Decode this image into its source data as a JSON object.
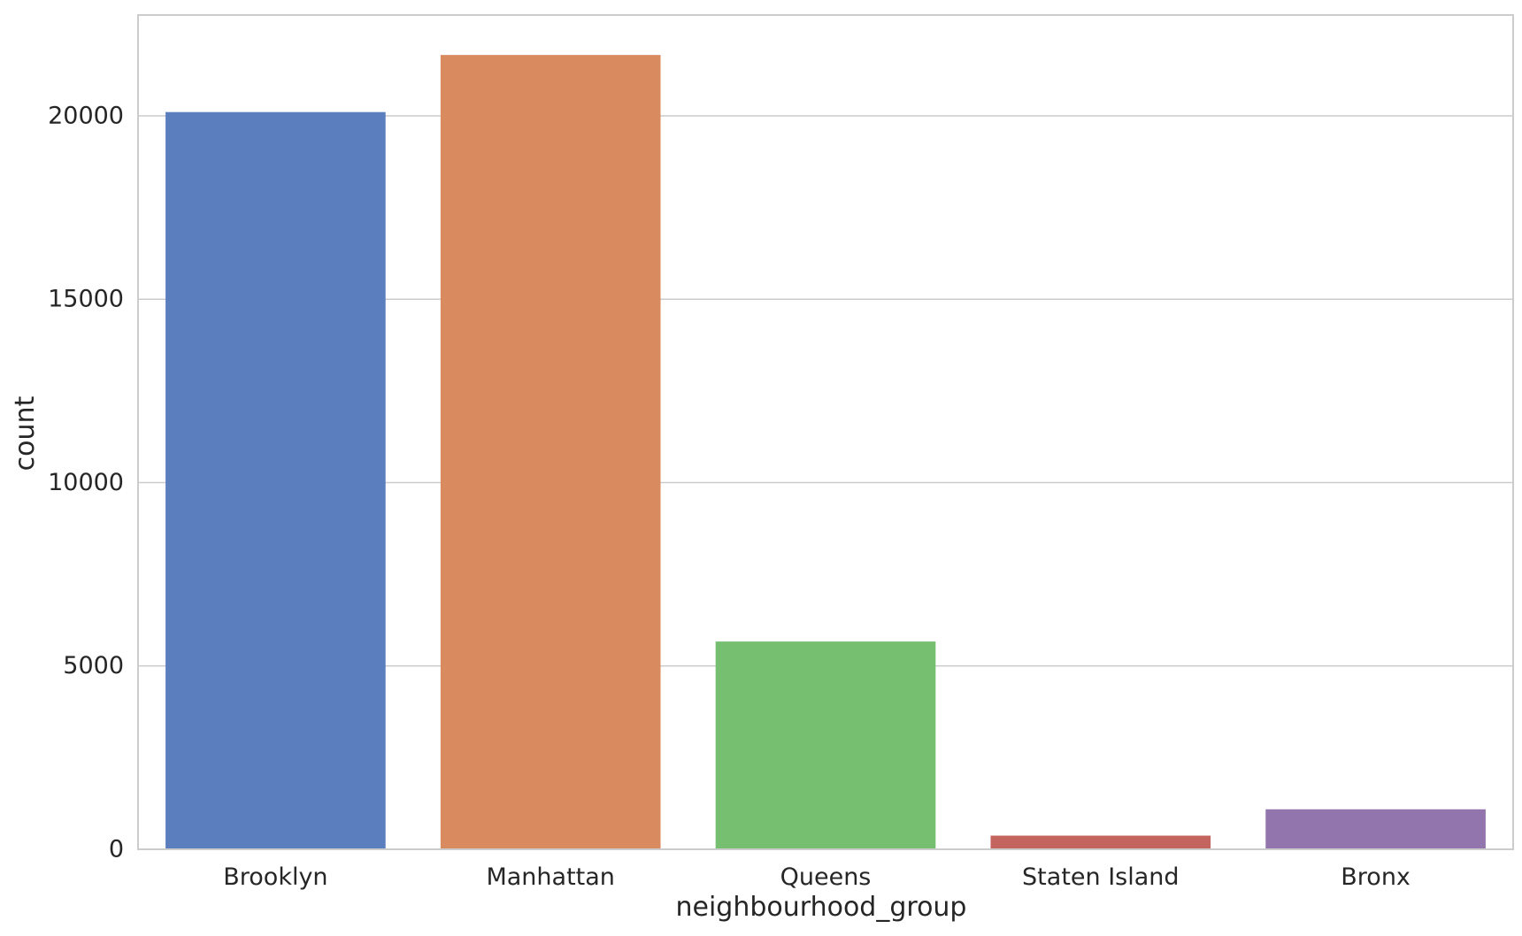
{
  "chart_data": {
    "type": "bar",
    "title": "",
    "xlabel": "neighbourhood_group",
    "ylabel": "count",
    "categories": [
      "Brooklyn",
      "Manhattan",
      "Queens",
      "Staten Island",
      "Bronx"
    ],
    "values": [
      20104,
      21661,
      5666,
      373,
      1091
    ],
    "colors": [
      "#5b7ebe",
      "#d98a5e",
      "#76be70",
      "#c4645f",
      "#9375ad"
    ],
    "ylim": [
      0,
      22750
    ],
    "yticks": [
      0,
      5000,
      10000,
      15000,
      20000
    ],
    "ytick_labels": [
      "0",
      "5000",
      "10000",
      "15000",
      "20000"
    ],
    "grid": "horizontal",
    "legend": "none"
  }
}
